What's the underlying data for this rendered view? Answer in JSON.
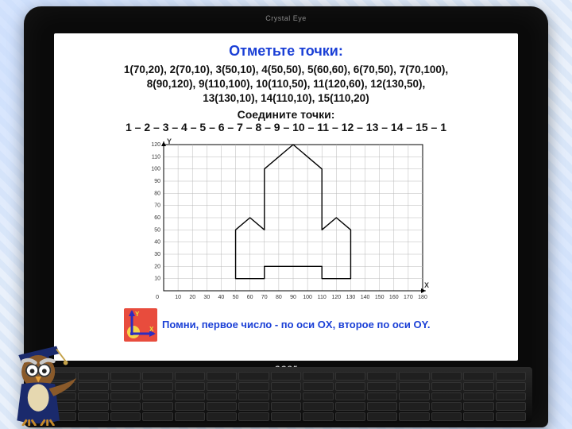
{
  "background": {
    "pattern_colors": [
      "#dce8f8",
      "#eaf1fb"
    ]
  },
  "laptop": {
    "brand_top": "Crystal Eye",
    "brand_keyboard": "acer"
  },
  "content": {
    "title": "Отметьте точки:",
    "points_lines": [
      "1(70,20), 2(70,10), 3(50,10), 4(50,50), 5(60,60), 6(70,50), 7(70,100),",
      "8(90,120), 9(110,100), 10(110,50), 11(120,60), 12(130,50),",
      "13(130,10), 14(110,10), 15(110,20)"
    ],
    "connect_title": "Соедините точки:",
    "connect_sequence": "1 – 2 – 3 – 4 – 5 – 6 – 7 – 8 – 9 – 10 – 11 – 12 – 13 – 14 – 15 – 1",
    "hint": "Помни, первое число - по оси OX, второе по оси OY."
  },
  "chart": {
    "type": "line",
    "xlim": [
      0,
      180
    ],
    "ylim": [
      0,
      120
    ],
    "xtick_step": 10,
    "ytick_step": 10,
    "xlabels_every": 10,
    "background_color": "#ffffff",
    "grid_color": "#b8b8b8",
    "axis_color": "#000000",
    "line_color": "#000000",
    "line_width": 1.4,
    "tick_fontsize": 7,
    "axis_label_fontsize": 9,
    "x_axis_label": "X",
    "y_axis_label": "Y",
    "points": [
      [
        70,
        20
      ],
      [
        70,
        10
      ],
      [
        50,
        10
      ],
      [
        50,
        50
      ],
      [
        60,
        60
      ],
      [
        70,
        50
      ],
      [
        70,
        100
      ],
      [
        90,
        120
      ],
      [
        110,
        100
      ],
      [
        110,
        50
      ],
      [
        120,
        60
      ],
      [
        130,
        50
      ],
      [
        130,
        10
      ],
      [
        110,
        10
      ],
      [
        110,
        20
      ]
    ],
    "closed": true
  },
  "colors": {
    "title": "#1a3fd6",
    "body_text": "#111111",
    "hint": "#1a3fd6"
  },
  "axis_icon": {
    "bg": "#e84c3d",
    "sun": "#f6d44a",
    "axis": "#2c2cc0",
    "label": "#e6e63a"
  }
}
